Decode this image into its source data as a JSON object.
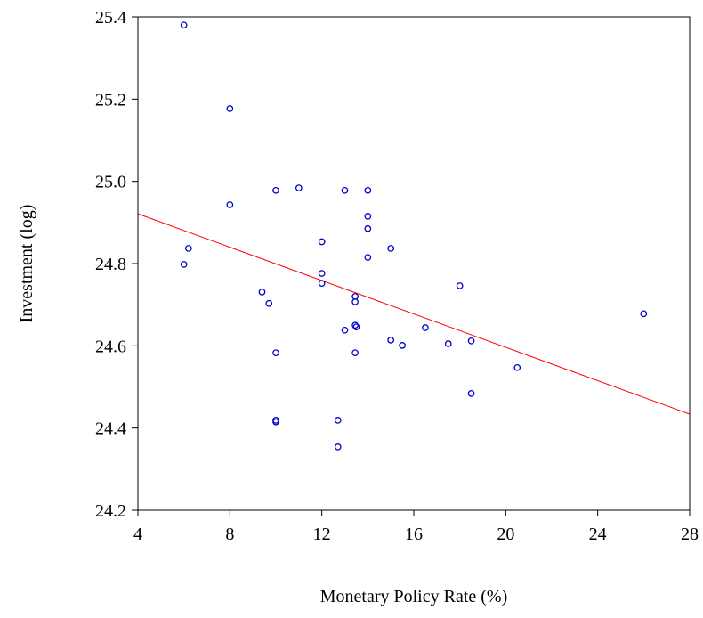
{
  "chart_data": {
    "type": "scatter",
    "x_label": "Monetary Policy Rate (%)",
    "y_label": "Investment (log)",
    "xlim": [
      4,
      28
    ],
    "xticks": [
      4,
      8,
      12,
      16,
      20,
      24,
      28
    ],
    "ylim": [
      24.2,
      25.4
    ],
    "yticks": [
      24.2,
      24.4,
      24.6,
      24.8,
      {
        "value": 25,
        "label": "25.0"
      },
      25.2,
      25.4
    ],
    "series": [
      {
        "color": "#0000cc",
        "x": [
          6,
          8,
          8,
          10,
          11,
          13,
          14,
          14,
          14,
          12,
          15,
          6.2,
          6,
          14,
          12,
          12,
          18,
          9.4,
          13.45,
          13.45,
          9.7,
          13.45,
          13.5,
          26,
          13,
          16.5,
          15,
          15.5,
          17.5,
          18.5,
          10,
          13.45,
          20.5,
          18.5,
          10,
          10,
          12.7,
          12.7
        ],
        "values": [
          25.38,
          25.177,
          24.943,
          24.978,
          24.984,
          24.978,
          24.978,
          24.915,
          24.885,
          24.853,
          24.837,
          24.837,
          24.798,
          24.815,
          24.776,
          24.752,
          24.746,
          24.731,
          24.72,
          24.707,
          24.703,
          24.65,
          24.646,
          24.678,
          24.638,
          24.644,
          24.614,
          24.601,
          24.605,
          24.612,
          24.583,
          24.583,
          24.547,
          24.484,
          24.419,
          24.415,
          24.419,
          24.354
        ]
      }
    ],
    "fit_line": {
      "color": "#ff0000",
      "x": [
        4,
        28
      ],
      "values": [
        24.921,
        24.434
      ]
    }
  }
}
